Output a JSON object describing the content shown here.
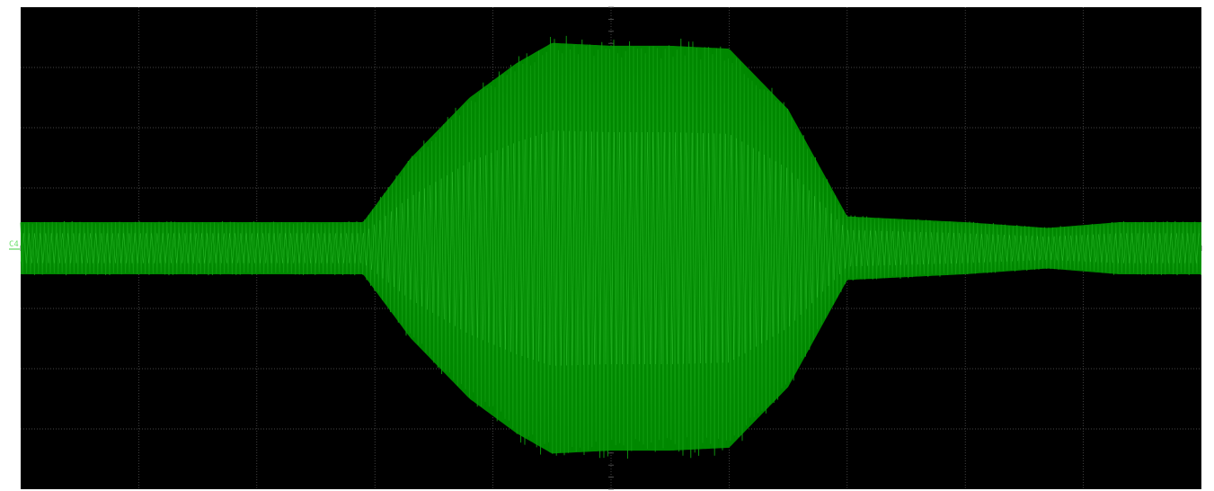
{
  "scope": {
    "channel": {
      "label": "C4",
      "color": "#3fcf3f"
    },
    "trace_color": "#0f9b0f",
    "trace_fill_color": "#008800",
    "background_color": "#000000",
    "grid_color": "#5a5a5a",
    "divisions": {
      "horizontal": 10,
      "vertical": 8
    },
    "envelope_divisions": [
      [
        0.0,
        0.45
      ],
      [
        2.9,
        0.45
      ],
      [
        3.3,
        1.55
      ],
      [
        3.8,
        2.6
      ],
      [
        4.2,
        3.2
      ],
      [
        4.5,
        3.55
      ],
      [
        5.0,
        3.5
      ],
      [
        5.5,
        3.5
      ],
      [
        6.0,
        3.45
      ],
      [
        6.5,
        2.4
      ],
      [
        7.0,
        0.55
      ],
      [
        8.0,
        0.45
      ],
      [
        8.7,
        0.35
      ],
      [
        9.3,
        0.45
      ],
      [
        10.0,
        0.45
      ]
    ]
  }
}
